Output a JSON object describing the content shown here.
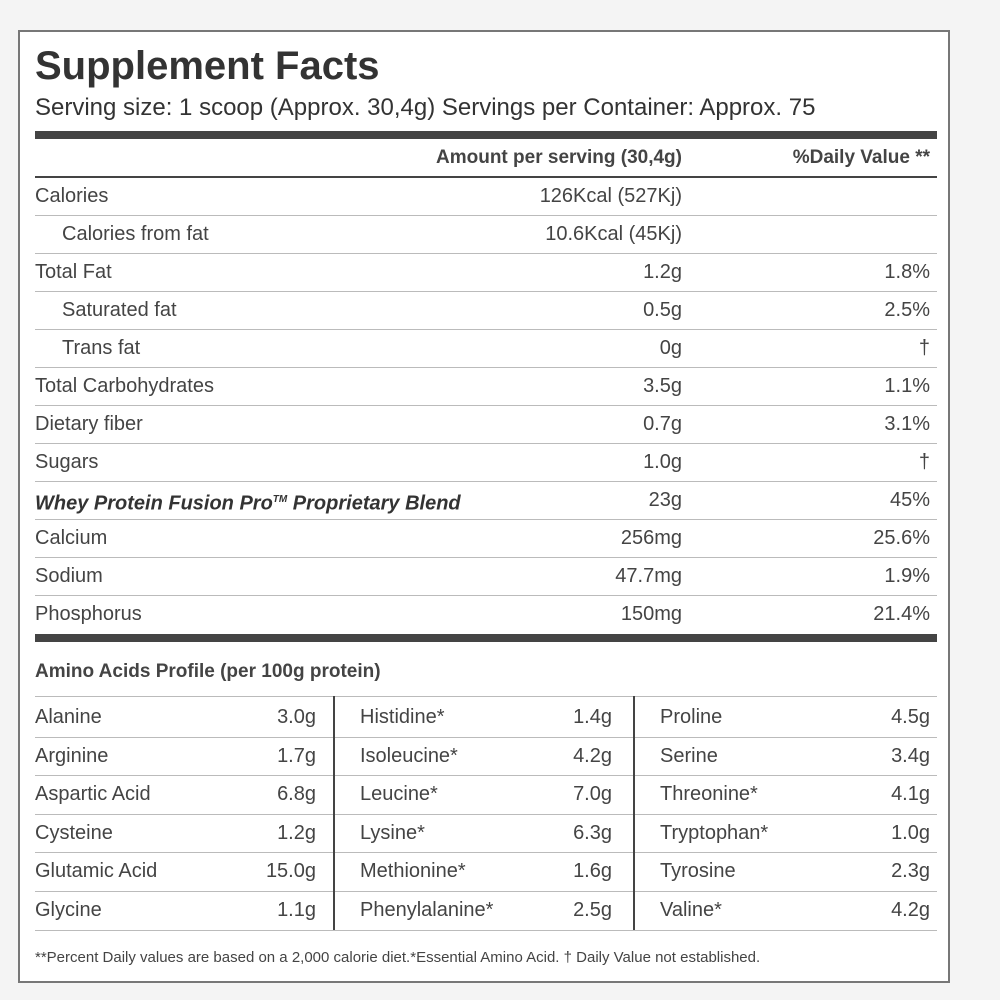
{
  "title": "Supplement Facts",
  "serving": "Serving size: 1 scoop (Approx. 30,4g) Servings per Container: Approx. 75",
  "header": {
    "amount": "Amount per serving (30,4g)",
    "dv": "%Daily Value **"
  },
  "nutrients": [
    {
      "name": "Calories",
      "amount": "126Kcal (527Kj)",
      "sub": [
        {
          "name": "Calories from fat",
          "amount": "10.6Kcal (45Kj)"
        }
      ]
    },
    {
      "name": "Total Fat",
      "amount": "1.2g",
      "dv": "1.8%",
      "sub": [
        {
          "name": "Saturated fat",
          "amount": "0.5g",
          "dv": "2.5%"
        },
        {
          "name": "Trans fat",
          "amount": "0g",
          "dv": "†"
        }
      ]
    },
    {
      "name": "Total Carbohydrates",
      "amount": "3.5g",
      "dv": "1.1%"
    },
    {
      "name": "Dietary fiber",
      "amount": "0.7g",
      "dv": "3.1%"
    },
    {
      "name": "Sugars",
      "amount": "1.0g",
      "dv": "†"
    }
  ],
  "blend": {
    "name": "Whey Protein Fusion Pro",
    "mark": "TM",
    "name_end": " Proprietary Blend",
    "amount": "23g",
    "dv": "45%"
  },
  "minerals": [
    {
      "name": "Calcium",
      "amount": "256mg",
      "dv": "25.6%"
    },
    {
      "name": "Sodium",
      "amount": "47.7mg",
      "dv": "1.9%"
    },
    {
      "name": "Phosphorus",
      "amount": "150mg",
      "dv": "21.4%"
    }
  ],
  "amino": {
    "title": "Amino Acids Profile (per 100g protein)",
    "columns": [
      [
        [
          "Alanine",
          "3.0g"
        ],
        [
          "Arginine",
          "1.7g"
        ],
        [
          "Aspartic Acid",
          "6.8g"
        ],
        [
          "Cysteine",
          "1.2g"
        ],
        [
          "Glutamic Acid",
          "15.0g"
        ],
        [
          "Glycine",
          "1.1g"
        ]
      ],
      [
        [
          "Histidine*",
          "1.4g"
        ],
        [
          "Isoleucine*",
          "4.2g"
        ],
        [
          "Leucine*",
          "7.0g"
        ],
        [
          "Lysine*",
          "6.3g"
        ],
        [
          "Methionine*",
          "1.6g"
        ],
        [
          "Phenylalanine*",
          "2.5g"
        ]
      ],
      [
        [
          "Proline",
          "4.5g"
        ],
        [
          "Serine",
          "3.4g"
        ],
        [
          "Threonine*",
          "4.1g"
        ],
        [
          "Tryptophan*",
          "1.0g"
        ],
        [
          "Tyrosine",
          "2.3g"
        ],
        [
          "Valine*",
          "4.2g"
        ]
      ]
    ]
  },
  "footnote": "**Percent Daily values are based on a 2,000 calorie diet.*Essential Amino Acid. † Daily Value not established."
}
